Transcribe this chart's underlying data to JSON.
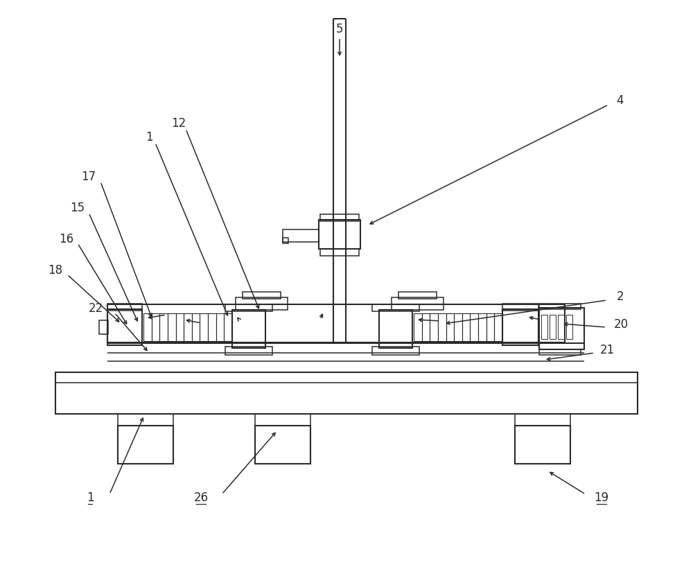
{
  "bg": "#ffffff",
  "lc": "#2a2a2a",
  "lw": 1.1,
  "lw2": 1.5,
  "fs": 12,
  "fig_w": 10.0,
  "fig_h": 8.29
}
